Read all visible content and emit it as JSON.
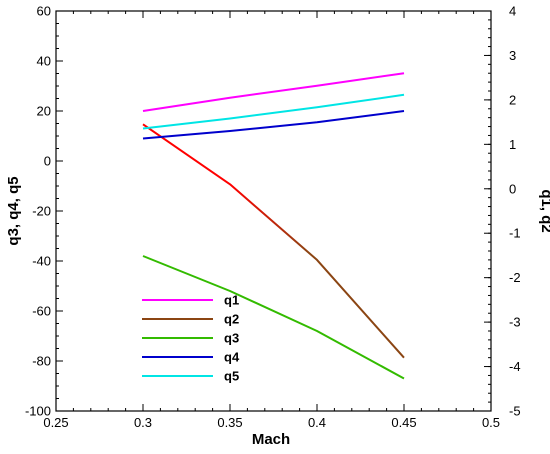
{
  "chart_data": {
    "type": "line",
    "title": "",
    "xlabel": "Mach",
    "ylabel_left": "q3, q4, q5",
    "ylabel_right": "q1, q2",
    "xlim": [
      0.25,
      0.5
    ],
    "ylim_left": [
      -100,
      60
    ],
    "ylim_right": [
      -5,
      4
    ],
    "x_ticks": [
      0.25,
      0.3,
      0.35,
      0.4,
      0.45,
      0.5
    ],
    "x_tick_labels": [
      "0.25",
      "0.3",
      "0.35",
      "0.4",
      "0.45",
      "0.5"
    ],
    "y_left_ticks": [
      -100,
      -80,
      -60,
      -40,
      -20,
      0,
      20,
      40,
      60
    ],
    "y_left_tick_labels": [
      "-100",
      "-80",
      "-60",
      "-40",
      "-20",
      "0",
      "20",
      "40",
      "60"
    ],
    "y_right_ticks": [
      -5,
      -4,
      -3,
      -2,
      -1,
      0,
      1,
      2,
      3,
      4
    ],
    "y_right_tick_labels": [
      "-5",
      "-4",
      "-3",
      "-2",
      "-1",
      "0",
      "1",
      "2",
      "3",
      "4"
    ],
    "grid": false,
    "legend_position": "lower-left",
    "x": [
      0.3,
      0.35,
      0.4,
      0.45
    ],
    "series": [
      {
        "name": "q1",
        "axis": "right",
        "color": "#ff00ff",
        "values": [
          1.75,
          2.05,
          2.32,
          2.6
        ]
      },
      {
        "name": "q2",
        "axis": "right",
        "color": "#ff0000",
        "color_end": "#8b4513",
        "values": [
          1.45,
          0.1,
          -1.6,
          -3.8
        ]
      },
      {
        "name": "q3",
        "axis": "left",
        "color": "#33bb00",
        "values": [
          -38,
          -52,
          -68,
          -87
        ]
      },
      {
        "name": "q4",
        "axis": "left",
        "color": "#0000cc",
        "values": [
          9,
          12,
          15.5,
          20
        ]
      },
      {
        "name": "q5",
        "axis": "left",
        "color": "#00e5e5",
        "values": [
          13,
          17,
          21.5,
          26.5
        ]
      }
    ],
    "legend": [
      {
        "label": "q1",
        "color": "#ff00ff"
      },
      {
        "label": "q2",
        "color": "#8b4513"
      },
      {
        "label": "q3",
        "color": "#33bb00"
      },
      {
        "label": "q4",
        "color": "#0000cc"
      },
      {
        "label": "q5",
        "color": "#00e5e5"
      }
    ]
  }
}
